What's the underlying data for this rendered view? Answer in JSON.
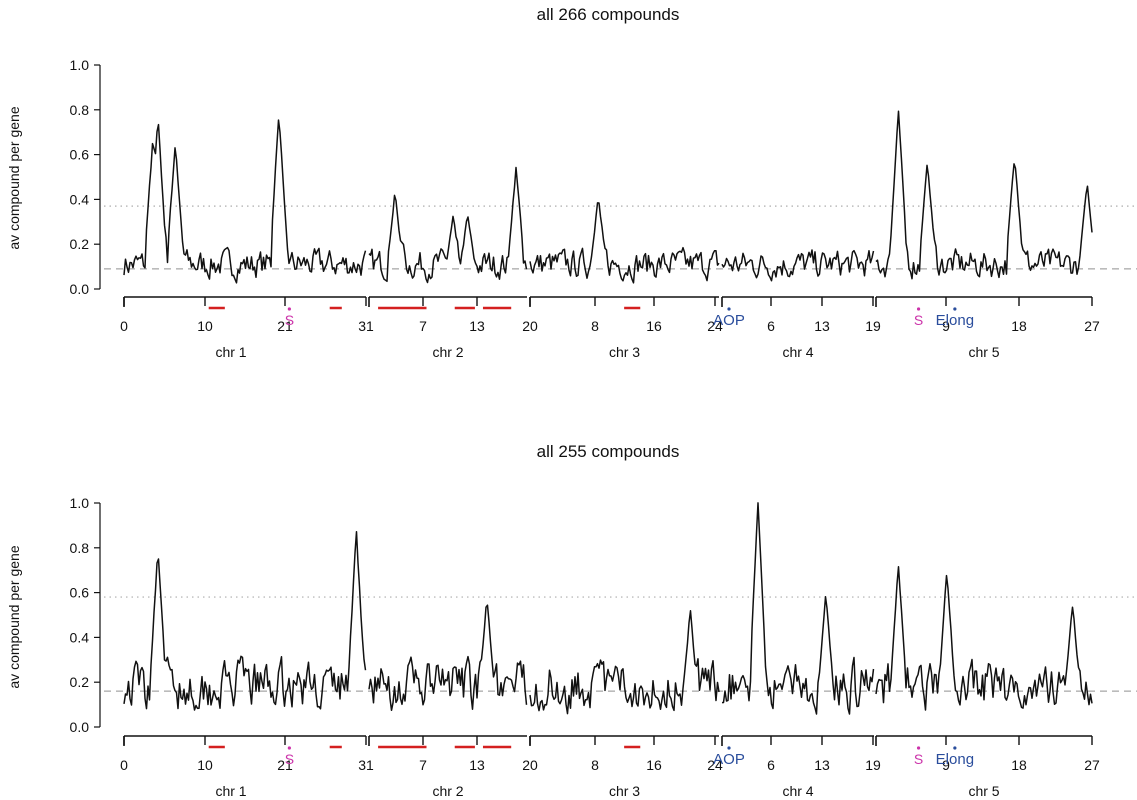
{
  "colors": {
    "series": "#111111",
    "threshold_dotted": "#bbbbbb",
    "threshold_dashed": "#bbbbbb",
    "region_bars": "#d42020",
    "marker_s": "#cc33aa",
    "marker_blue": "#2a4d9c"
  },
  "chart_data": [
    {
      "type": "line",
      "title": "all 266 compounds",
      "ylabel": "av compound per gene",
      "ylim": [
        0,
        1.0
      ],
      "yticks": [
        "0.0",
        "0.2",
        "0.4",
        "0.6",
        "0.8",
        "1.0"
      ],
      "grid": false,
      "thresholds": {
        "dotted": 0.37,
        "dashed": 0.09
      },
      "chromosomes": [
        {
          "label": "chr 1",
          "ticks": [
            "0",
            "10",
            "21",
            "31"
          ],
          "extent": [
            0,
            31
          ]
        },
        {
          "label": "chr 2",
          "ticks": [
            "7",
            "13"
          ],
          "extent": [
            0,
            20
          ]
        },
        {
          "label": "chr 3",
          "ticks": [
            "20",
            "8",
            "16",
            "24"
          ],
          "extent": [
            0,
            24
          ]
        },
        {
          "label": "chr 4",
          "ticks": [
            "6",
            "13",
            "19"
          ],
          "extent": [
            0,
            19
          ]
        },
        {
          "label": "chr 5",
          "ticks": [
            "9",
            "18",
            "27"
          ],
          "extent": [
            0,
            27
          ]
        }
      ],
      "peaks": [
        {
          "x": 0.03,
          "y": 0.68
        },
        {
          "x": 0.035,
          "y": 0.77
        },
        {
          "x": 0.053,
          "y": 0.65
        },
        {
          "x": 0.16,
          "y": 0.79
        },
        {
          "x": 0.28,
          "y": 0.43
        },
        {
          "x": 0.34,
          "y": 0.32
        },
        {
          "x": 0.355,
          "y": 0.33
        },
        {
          "x": 0.405,
          "y": 0.54
        },
        {
          "x": 0.49,
          "y": 0.41
        },
        {
          "x": 0.8,
          "y": 0.8
        },
        {
          "x": 0.83,
          "y": 0.57
        },
        {
          "x": 0.92,
          "y": 0.6
        },
        {
          "x": 0.995,
          "y": 0.47
        }
      ],
      "baseline": 0.12,
      "seed": 7,
      "region_bars": [
        [
          10.5,
          12.5
        ],
        [
          25.5,
          27
        ],
        [
          31.5,
          37.5
        ],
        [
          41,
          43.5
        ],
        [
          44.5,
          48
        ],
        [
          62,
          64
        ]
      ],
      "markers": [
        {
          "label": "S",
          "type": "s",
          "pos": 20.5
        },
        {
          "label": "AOP",
          "type": "blue",
          "pos": 75
        },
        {
          "label": "S",
          "type": "s",
          "pos": 98.5
        },
        {
          "label": "Elong",
          "type": "blue",
          "pos": 103
        }
      ]
    },
    {
      "type": "line",
      "title": "all 255 compounds",
      "ylabel": "av compound per gene",
      "ylim": [
        0,
        1.0
      ],
      "yticks": [
        "0.0",
        "0.2",
        "0.4",
        "0.6",
        "0.8",
        "1.0"
      ],
      "grid": false,
      "thresholds": {
        "dotted": 0.58,
        "dashed": 0.16
      },
      "chromosomes": [
        {
          "label": "chr 1",
          "ticks": [
            "0",
            "10",
            "21",
            "31"
          ],
          "extent": [
            0,
            31
          ]
        },
        {
          "label": "chr 2",
          "ticks": [
            "7",
            "13"
          ],
          "extent": [
            0,
            20
          ]
        },
        {
          "label": "chr 3",
          "ticks": [
            "20",
            "8",
            "16",
            "24"
          ],
          "extent": [
            0,
            24
          ]
        },
        {
          "label": "chr 4",
          "ticks": [
            "6",
            "13",
            "19"
          ],
          "extent": [
            0,
            19
          ]
        },
        {
          "label": "chr 5",
          "ticks": [
            "9",
            "18",
            "27"
          ],
          "extent": [
            0,
            27
          ]
        }
      ],
      "peaks": [
        {
          "x": 0.035,
          "y": 0.8
        },
        {
          "x": 0.24,
          "y": 0.88
        },
        {
          "x": 0.375,
          "y": 0.58
        },
        {
          "x": 0.585,
          "y": 0.52
        },
        {
          "x": 0.655,
          "y": 1.01
        },
        {
          "x": 0.725,
          "y": 0.6
        },
        {
          "x": 0.8,
          "y": 0.73
        },
        {
          "x": 0.85,
          "y": 0.7
        },
        {
          "x": 0.98,
          "y": 0.55
        }
      ],
      "baseline": 0.2,
      "seed": 19,
      "region_bars": [
        [
          10.5,
          12.5
        ],
        [
          25.5,
          27
        ],
        [
          31.5,
          37.5
        ],
        [
          41,
          43.5
        ],
        [
          44.5,
          48
        ],
        [
          62,
          64
        ]
      ],
      "markers": [
        {
          "label": "S",
          "type": "s",
          "pos": 20.5
        },
        {
          "label": "AOP",
          "type": "blue",
          "pos": 75
        },
        {
          "label": "S",
          "type": "s",
          "pos": 98.5
        },
        {
          "label": "Elong",
          "type": "blue",
          "pos": 103
        }
      ]
    }
  ]
}
